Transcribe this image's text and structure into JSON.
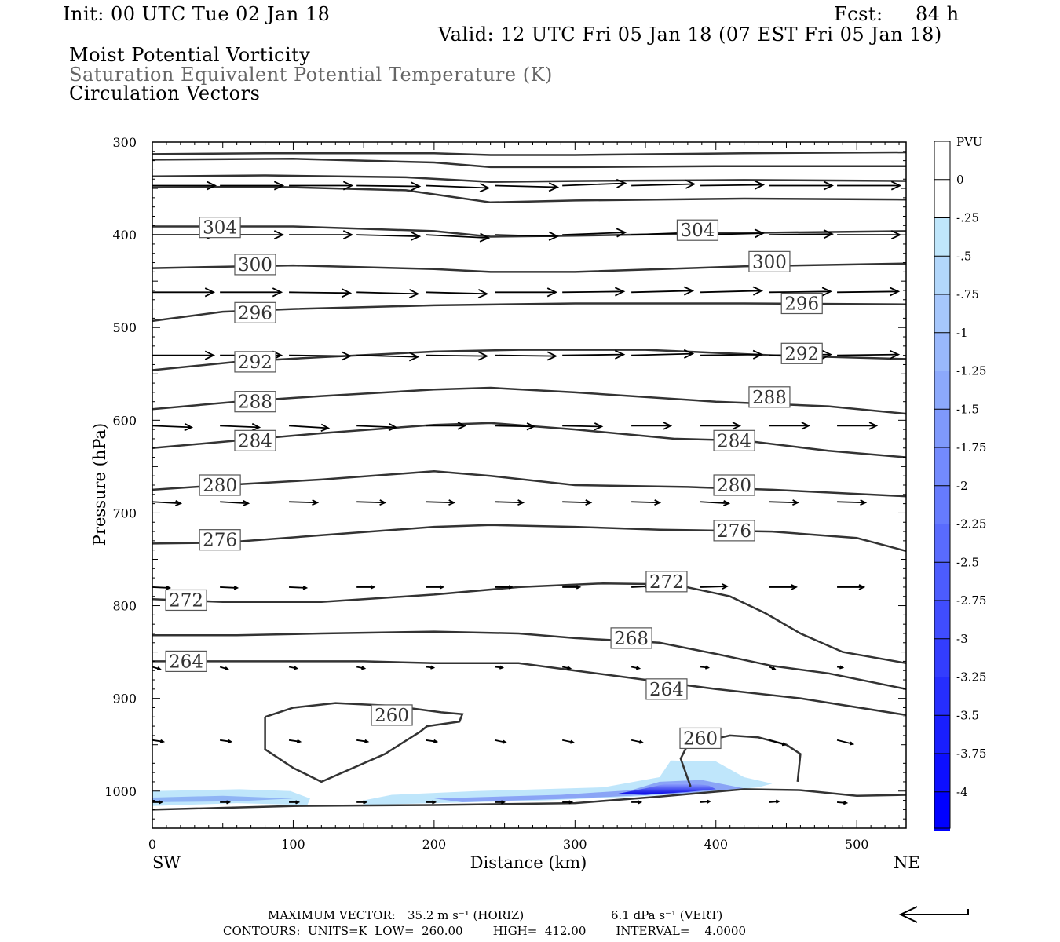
{
  "header": {
    "init": "Init: 00 UTC Tue 02 Jan 18",
    "fcst_label": "Fcst:",
    "fcst_value": "84 h",
    "valid": "Valid: 12 UTC Fri 05 Jan 18 (07 EST Fri 05 Jan 18)",
    "title_line1": "Moist Potential Vorticity",
    "title_line2": "Saturation Equivalent Potential Temperature (K)",
    "title_line3": "Circulation Vectors"
  },
  "footer": {
    "max_vector_label": "MAXIMUM VECTOR:",
    "max_vector_horiz": "35.2 m s⁻¹ (HORIZ)",
    "max_vector_vert": "6.1 dPa s⁻¹ (VERT)",
    "contours_line": "CONTOURS:  UNITS=K  LOW=  260.00        HIGH=  412.00        INTERVAL=    4.0000"
  },
  "colors": {
    "contour": "#333333",
    "pv_light": "#bfe6fb",
    "pv_dark": "#0000ff"
  },
  "chart_data": {
    "type": "cross-section",
    "xlabel": "Distance (km)",
    "ylabel": "Pressure (hPa)",
    "xlim": [
      0,
      535
    ],
    "ylim": [
      1040,
      300
    ],
    "x_ticks": [
      "0",
      "100",
      "200",
      "300",
      "400",
      "500"
    ],
    "y_ticks": [
      "300",
      "400",
      "500",
      "600",
      "700",
      "800",
      "900",
      "1000"
    ],
    "left_end": "SW",
    "right_end": "NE",
    "colorbar": {
      "title": "PVU",
      "labels": [
        "0",
        "-.25",
        "-.5",
        "-.75",
        "-1",
        "-1.25",
        "-1.5",
        "-1.75",
        "-2",
        "-2.25",
        "-2.5",
        "-2.75",
        "-3",
        "-3.25",
        "-3.5",
        "-3.75",
        "-4"
      ]
    },
    "contour_labels": [
      {
        "text": "304",
        "x": 48,
        "p": 392
      },
      {
        "text": "304",
        "x": 387,
        "p": 395
      },
      {
        "text": "300",
        "x": 73,
        "p": 432
      },
      {
        "text": "300",
        "x": 438,
        "p": 429
      },
      {
        "text": "296",
        "x": 73,
        "p": 484
      },
      {
        "text": "296",
        "x": 461,
        "p": 474
      },
      {
        "text": "292",
        "x": 73,
        "p": 537
      },
      {
        "text": "292",
        "x": 461,
        "p": 528
      },
      {
        "text": "288",
        "x": 73,
        "p": 580
      },
      {
        "text": "288",
        "x": 438,
        "p": 575
      },
      {
        "text": "284",
        "x": 73,
        "p": 622
      },
      {
        "text": "284",
        "x": 413,
        "p": 622
      },
      {
        "text": "280",
        "x": 48,
        "p": 670
      },
      {
        "text": "280",
        "x": 413,
        "p": 670
      },
      {
        "text": "276",
        "x": 48,
        "p": 729
      },
      {
        "text": "276",
        "x": 413,
        "p": 719
      },
      {
        "text": "272",
        "x": 24,
        "p": 794
      },
      {
        "text": "272",
        "x": 365,
        "p": 774
      },
      {
        "text": "268",
        "x": 340,
        "p": 835
      },
      {
        "text": "264",
        "x": 24,
        "p": 860
      },
      {
        "text": "264",
        "x": 365,
        "p": 890
      },
      {
        "text": "260",
        "x": 170,
        "p": 918
      },
      {
        "text": "260",
        "x": 389,
        "p": 943
      }
    ]
  }
}
